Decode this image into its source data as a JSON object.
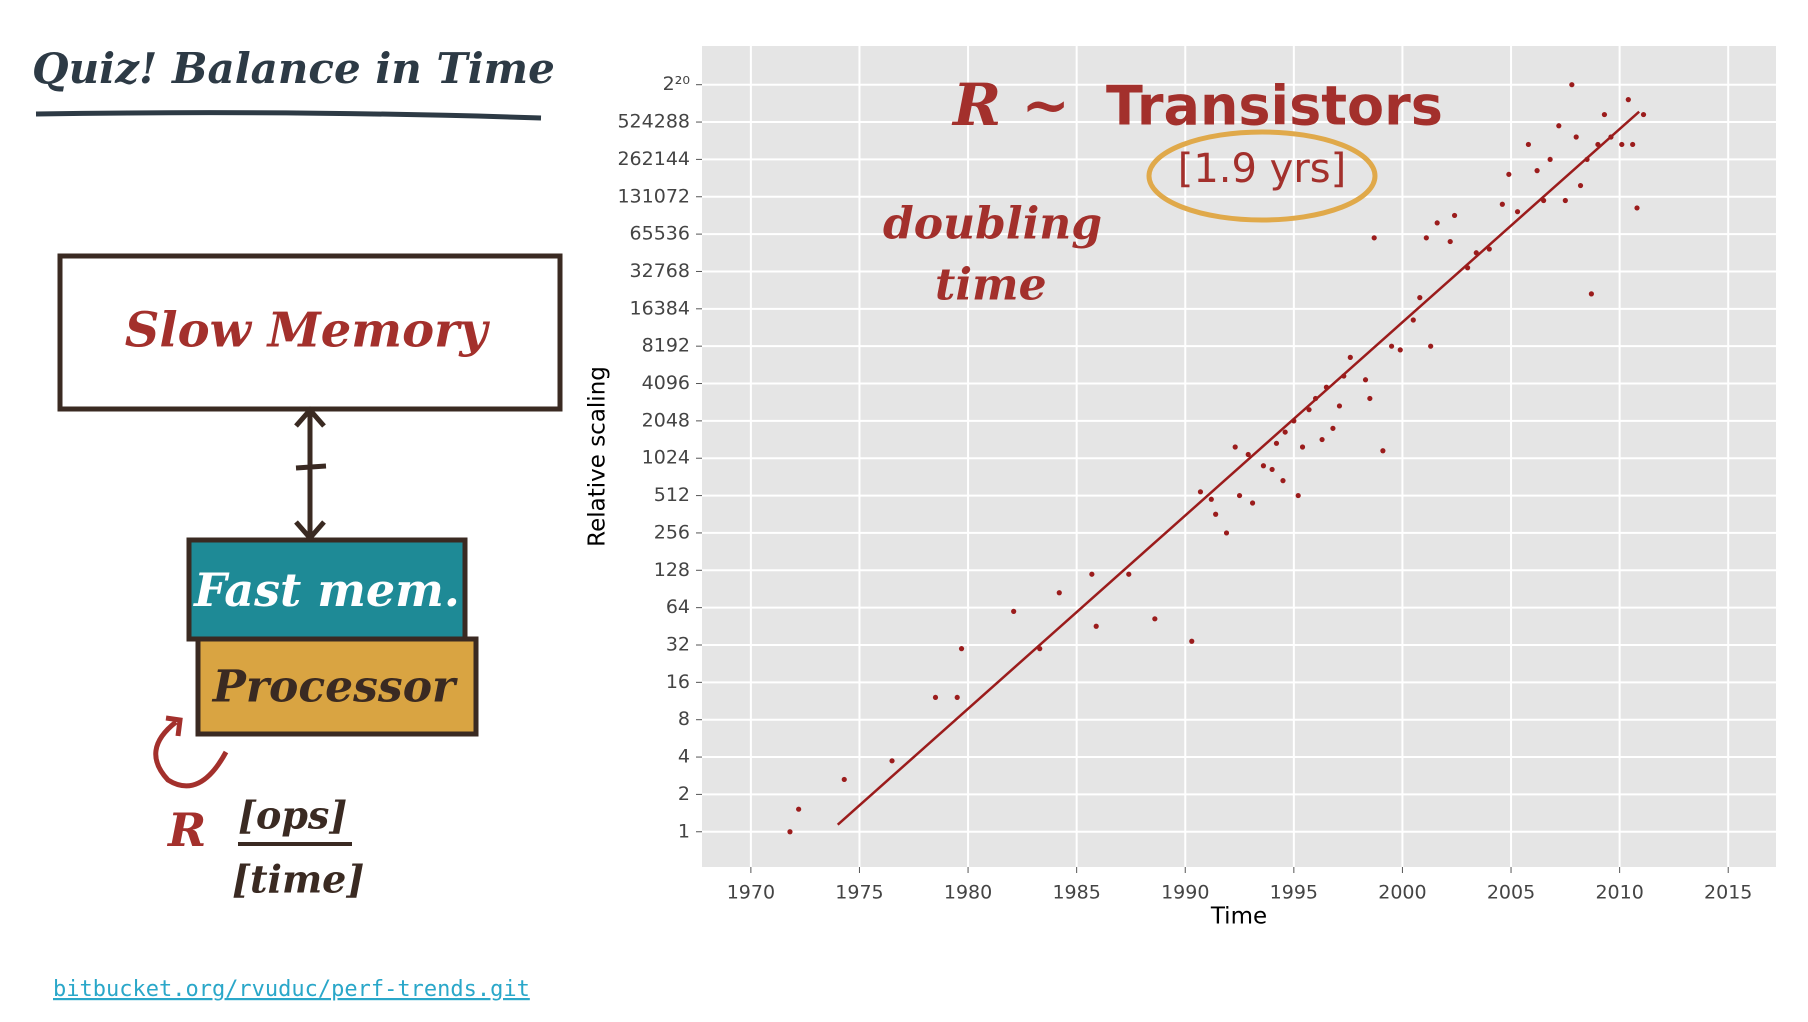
{
  "header": {
    "title": "Quiz! Balance in Time"
  },
  "diagram": {
    "slow_memory": "Slow Memory",
    "fast_memory": "Fast mem.",
    "processor": "Processor",
    "rate": "R",
    "numerator": "[ops]",
    "denominator": "[time]"
  },
  "footer": {
    "link": "bitbucket.org/rvuduc/perf-trends.git"
  },
  "chart_data": {
    "type": "scatter",
    "xlabel": "Time",
    "ylabel": "Relative scaling",
    "annotations": [
      "R ~",
      "Transistors",
      "[1.9 yrs]",
      "doubling",
      "time"
    ],
    "yscale": "log",
    "grid": true,
    "xlim": [
      1967.75,
      2017.2
    ],
    "xticks": [
      1970,
      1975,
      1980,
      1985,
      1990,
      1995,
      2000,
      2005,
      2010,
      2015
    ],
    "ylim": [
      0.52,
      2150000
    ],
    "yticks": [
      1,
      2,
      4,
      8,
      16,
      32,
      64,
      128,
      256,
      512,
      1024,
      2048,
      4096,
      8192,
      16384,
      32768,
      65536,
      131072,
      262144,
      524288,
      {
        "value": 1048576,
        "label": "2²⁰"
      }
    ],
    "series": [
      {
        "mark": "point",
        "color": "#9b1c1c",
        "x": [
          1971.8,
          1972.2,
          1974.3,
          1976.5,
          1978.5,
          1979.5,
          1979.7,
          1982.1,
          1983.3,
          1984.2,
          1985.7,
          1985.9,
          1987.4,
          1988.6,
          1990.3,
          1990.7,
          1991.2,
          1991.4,
          1991.9,
          1992.3,
          1992.5,
          1992.9,
          1993.1,
          1993.6,
          1994.0,
          1994.2,
          1994.5,
          1994.6,
          1995.0,
          1995.2,
          1995.4,
          1995.7,
          1996.0,
          1996.3,
          1996.5,
          1996.8,
          1997.1,
          1997.3,
          1997.6,
          1998.3,
          1998.5,
          1998.7,
          1999.1,
          1999.5,
          1999.9,
          2000.5,
          2000.8,
          2001.1,
          2001.3,
          2001.6,
          2002.2,
          2002.4,
          2003.0,
          2003.4,
          2004.0,
          2004.6,
          2004.9,
          2005.3,
          2005.8,
          2006.2,
          2006.5,
          2006.8,
          2007.2,
          2007.5,
          2007.8,
          2008.0,
          2008.2,
          2008.5,
          2008.7,
          2009.0,
          2009.3,
          2009.6,
          2010.1,
          2010.4,
          2010.8,
          2010.6,
          2011.1
        ],
        "values": [
          1,
          1.52,
          2.64,
          3.73,
          12.1,
          12.1,
          29.9,
          59.7,
          29.9,
          84.4,
          119,
          45.3,
          119,
          52,
          34.3,
          549,
          478,
          362,
          256,
          1261,
          512,
          1097,
          446,
          891,
          832,
          1351,
          676,
          1663,
          2048,
          512,
          1261,
          2521,
          3104,
          1448,
          3822,
          1783,
          2702,
          4705,
          6654,
          4390,
          3104,
          61147,
          1176,
          8192,
          7643,
          13308,
          20171,
          61147,
          8192,
          80684,
          57052,
          92682,
          35120,
          46341,
          49667,
          114104,
          198669,
          99334,
          345901,
          212927,
          122295,
          262144,
          489178,
          122295,
          1048576,
          397336,
          161363,
          262144,
          21619,
          345901,
          602249,
          397336,
          345901,
          794672,
          106464,
          345901,
          602249
        ]
      },
      {
        "mark": "line",
        "color": "#9b1c1c",
        "x": [
          1974.0,
          2010.9
        ],
        "values": [
          1.14,
          636000
        ]
      }
    ]
  }
}
